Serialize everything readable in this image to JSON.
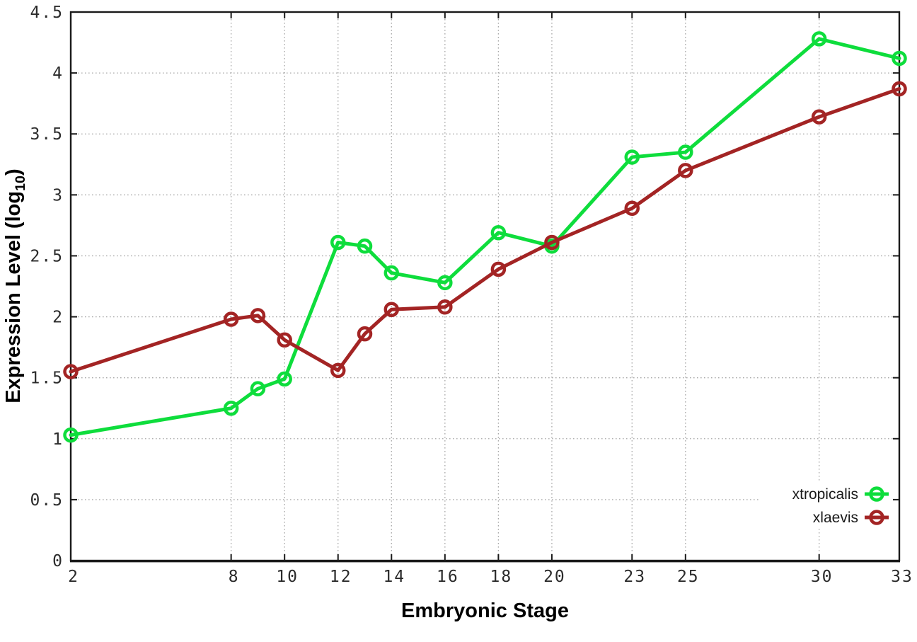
{
  "chart_data": {
    "type": "line",
    "xlabel": "Embryonic Stage",
    "ylabel": {
      "pre": "Expression Level (log",
      "sub": "10",
      "post": ")"
    },
    "x": [
      2,
      8,
      9,
      10,
      12,
      13,
      14,
      16,
      18,
      20,
      23,
      25,
      30,
      33
    ],
    "x_tick_labels": [
      "2",
      "8",
      "10",
      "12",
      "14",
      "16",
      "18",
      "20",
      "23",
      "25",
      "30",
      "33"
    ],
    "x_tick_values": [
      2,
      8,
      10,
      12,
      14,
      16,
      18,
      20,
      23,
      25,
      30,
      33
    ],
    "y_tick_labels": [
      "0",
      "0.5",
      "1",
      "1.5",
      "2",
      "2.5",
      "3",
      "3.5",
      "4",
      "4.5"
    ],
    "y_tick_values": [
      0,
      0.5,
      1,
      1.5,
      2,
      2.5,
      3,
      3.5,
      4,
      4.5
    ],
    "xlim": [
      2,
      33
    ],
    "ylim": [
      0,
      4.5
    ],
    "grid": true,
    "legend_position": "bottom-right",
    "series": [
      {
        "name": "xtropicalis",
        "color": "#0edd3c",
        "values": [
          1.03,
          1.25,
          1.41,
          1.49,
          2.61,
          2.58,
          2.36,
          2.28,
          2.69,
          2.58,
          3.31,
          3.35,
          4.28,
          4.12
        ]
      },
      {
        "name": "xlaevis",
        "color": "#a32424",
        "values": [
          1.55,
          1.98,
          2.01,
          1.81,
          1.56,
          1.86,
          2.06,
          2.08,
          2.39,
          2.61,
          2.89,
          3.2,
          3.64,
          3.87
        ]
      }
    ]
  },
  "style_colors": {
    "border": "#1a1a1a",
    "grid": "#a8a8a8",
    "tick_text": "#2b2b2b",
    "legend_text": "#1a1a1a",
    "background": "#ffffff"
  }
}
